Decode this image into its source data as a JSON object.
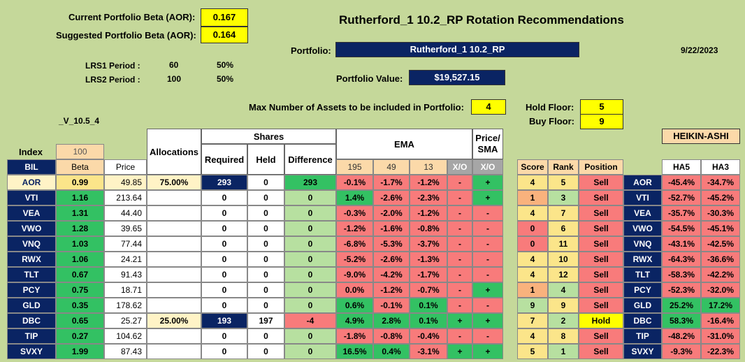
{
  "header": {
    "current_beta_label": "Current Portfolio Beta (AOR):",
    "current_beta_value": "0.167",
    "suggested_beta_label": "Suggested Portfolio Beta (AOR):",
    "suggested_beta_value": "0.164",
    "title": "Rutherford_1 10.2_RP Rotation Recommendations",
    "portfolio_label": "Portfolio:",
    "portfolio_name": "Rutherford_1 10.2_RP",
    "date": "9/22/2023",
    "lrs1_label": "LRS1 Period :",
    "lrs1_period": "60",
    "lrs1_pct": "50%",
    "lrs2_label": "LRS2 Period :",
    "lrs2_period": "100",
    "lrs2_pct": "50%",
    "portfolio_value_label": "Portfolio Value:",
    "portfolio_value": "$19,527.15",
    "max_assets_label": "Max Number of Assets to be included in Portfolio:",
    "max_assets": "4",
    "hold_floor_label": "Hold Floor:",
    "hold_floor": "5",
    "buy_floor_label": "Buy Floor:",
    "buy_floor": "9",
    "version": "_V_10.5_4",
    "heikin_label": "HEIKIN-ASHI",
    "index_label": "Index",
    "index_value": "100"
  },
  "columns": {
    "bil": "BIL",
    "beta": "Beta",
    "price": "Price",
    "allocations": "Allocations",
    "shares": "Shares",
    "required": "Required",
    "held": "Held",
    "difference": "Difference",
    "ema": "EMA",
    "ema195": "195",
    "ema49": "49",
    "ema13": "13",
    "xo1": "X/O",
    "price_sma": "Price/ SMA",
    "xo2": "X/O",
    "score": "Score",
    "rank": "Rank",
    "position": "Position",
    "ha5": "HA5",
    "ha3": "HA3"
  },
  "rows": [
    {
      "t": "AOR",
      "beta": "0.99",
      "price": "49.85",
      "alloc": "75.00%",
      "req": "293",
      "held": "0",
      "diff": "293",
      "e195": "-0.1%",
      "e49": "-1.7%",
      "e13": "-1.2%",
      "xo": "-",
      "psma": "+",
      "score": "4",
      "rank": "5",
      "pos": "Sell",
      "ha5": "-45.4%",
      "ha3": "-34.7%"
    },
    {
      "t": "VTI",
      "beta": "1.16",
      "price": "213.64",
      "alloc": "",
      "req": "0",
      "held": "0",
      "diff": "0",
      "e195": "1.4%",
      "e49": "-2.6%",
      "e13": "-2.3%",
      "xo": "-",
      "psma": "+",
      "score": "1",
      "rank": "3",
      "pos": "Sell",
      "ha5": "-52.7%",
      "ha3": "-45.2%"
    },
    {
      "t": "VEA",
      "beta": "1.31",
      "price": "44.40",
      "alloc": "",
      "req": "0",
      "held": "0",
      "diff": "0",
      "e195": "-0.3%",
      "e49": "-2.0%",
      "e13": "-1.2%",
      "xo": "-",
      "psma": "-",
      "score": "4",
      "rank": "7",
      "pos": "Sell",
      "ha5": "-35.7%",
      "ha3": "-30.3%"
    },
    {
      "t": "VWO",
      "beta": "1.28",
      "price": "39.65",
      "alloc": "",
      "req": "0",
      "held": "0",
      "diff": "0",
      "e195": "-1.2%",
      "e49": "-1.6%",
      "e13": "-0.8%",
      "xo": "-",
      "psma": "-",
      "score": "0",
      "rank": "6",
      "pos": "Sell",
      "ha5": "-54.5%",
      "ha3": "-45.1%"
    },
    {
      "t": "VNQ",
      "beta": "1.03",
      "price": "77.44",
      "alloc": "",
      "req": "0",
      "held": "0",
      "diff": "0",
      "e195": "-6.8%",
      "e49": "-5.3%",
      "e13": "-3.7%",
      "xo": "-",
      "psma": "-",
      "score": "0",
      "rank": "11",
      "pos": "Sell",
      "ha5": "-43.1%",
      "ha3": "-42.5%"
    },
    {
      "t": "RWX",
      "beta": "1.06",
      "price": "24.21",
      "alloc": "",
      "req": "0",
      "held": "0",
      "diff": "0",
      "e195": "-5.2%",
      "e49": "-2.6%",
      "e13": "-1.3%",
      "xo": "-",
      "psma": "-",
      "score": "4",
      "rank": "10",
      "pos": "Sell",
      "ha5": "-64.3%",
      "ha3": "-36.6%"
    },
    {
      "t": "TLT",
      "beta": "0.67",
      "price": "91.43",
      "alloc": "",
      "req": "0",
      "held": "0",
      "diff": "0",
      "e195": "-9.0%",
      "e49": "-4.2%",
      "e13": "-1.7%",
      "xo": "-",
      "psma": "-",
      "score": "4",
      "rank": "12",
      "pos": "Sell",
      "ha5": "-58.3%",
      "ha3": "-42.2%"
    },
    {
      "t": "PCY",
      "beta": "0.75",
      "price": "18.71",
      "alloc": "",
      "req": "0",
      "held": "0",
      "diff": "0",
      "e195": "0.0%",
      "e49": "-1.2%",
      "e13": "-0.7%",
      "xo": "-",
      "psma": "+",
      "score": "1",
      "rank": "4",
      "pos": "Sell",
      "ha5": "-52.3%",
      "ha3": "-32.0%"
    },
    {
      "t": "GLD",
      "beta": "0.35",
      "price": "178.62",
      "alloc": "",
      "req": "0",
      "held": "0",
      "diff": "0",
      "e195": "0.6%",
      "e49": "-0.1%",
      "e13": "0.1%",
      "xo": "-",
      "psma": "-",
      "score": "9",
      "rank": "9",
      "pos": "Sell",
      "ha5": "25.2%",
      "ha3": "17.2%"
    },
    {
      "t": "DBC",
      "beta": "0.65",
      "price": "25.27",
      "alloc": "25.00%",
      "req": "193",
      "held": "197",
      "diff": "-4",
      "e195": "4.9%",
      "e49": "2.8%",
      "e13": "0.1%",
      "xo": "+",
      "psma": "+",
      "score": "7",
      "rank": "2",
      "pos": "Hold",
      "ha5": "58.3%",
      "ha3": "-16.4%"
    },
    {
      "t": "TIP",
      "beta": "0.27",
      "price": "104.62",
      "alloc": "",
      "req": "0",
      "held": "0",
      "diff": "0",
      "e195": "-1.8%",
      "e49": "-0.8%",
      "e13": "-0.4%",
      "xo": "-",
      "psma": "-",
      "score": "4",
      "rank": "8",
      "pos": "Sell",
      "ha5": "-48.2%",
      "ha3": "-31.0%"
    },
    {
      "t": "SVXY",
      "beta": "1.99",
      "price": "87.43",
      "alloc": "",
      "req": "0",
      "held": "0",
      "diff": "0",
      "e195": "16.5%",
      "e49": "0.4%",
      "e13": "-3.1%",
      "xo": "+",
      "psma": "+",
      "score": "5",
      "rank": "1",
      "pos": "Sell",
      "ha5": "-9.3%",
      "ha3": "-22.3%"
    }
  ],
  "colors": {
    "background": "#c5d89a",
    "navy": "#0a2463",
    "positive": "#33c163",
    "negative": "#f87b7b",
    "highlight": "#ffff00"
  }
}
